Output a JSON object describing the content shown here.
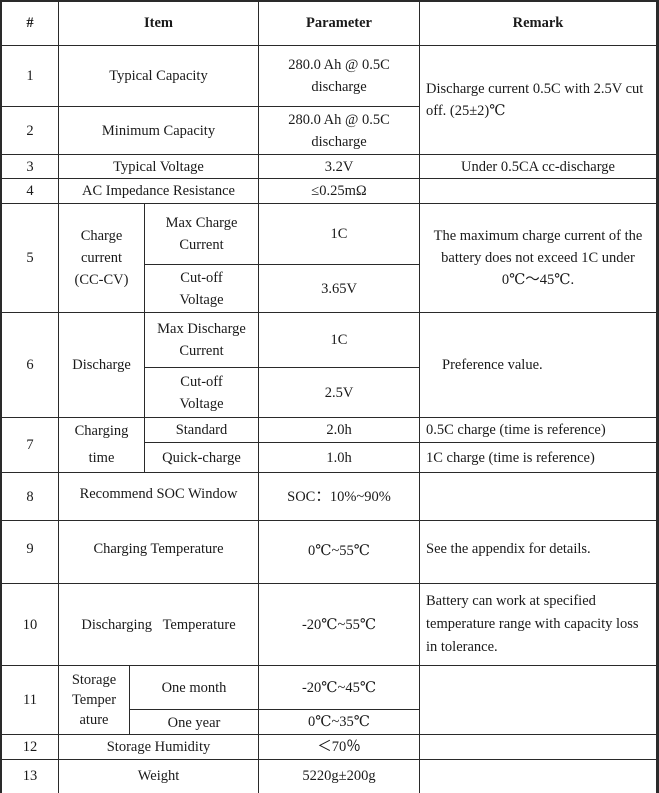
{
  "header": {
    "num": "#",
    "item": "Item",
    "parameter": "Parameter",
    "remark": "Remark"
  },
  "rows": [
    {
      "num": "1",
      "item": "Typical Capacity",
      "parameter": "280.0 Ah @ 0.5C discharge",
      "remark": "Discharge  current 0.5C with 2.5V cut off. (25±2)℃"
    },
    {
      "num": "2",
      "item": "Minimum Capacity",
      "parameter": "280.0 Ah @ 0.5C discharge"
    },
    {
      "num": "3",
      "item": "Typical Voltage",
      "parameter": "3.2V",
      "remark": "Under 0.5CA cc-discharge"
    },
    {
      "num": "4",
      "item": "AC Impedance Resistance",
      "parameter": "≤0.25mΩ",
      "remark": ""
    },
    {
      "num": "5",
      "item": "Charge current (CC-CV)",
      "sub": [
        {
          "item": "Max Charge Current",
          "parameter": "1C"
        },
        {
          "item": "Cut-off Voltage",
          "parameter": "3.65V"
        }
      ],
      "remark": "The maximum  charge current of the battery does not exceed 1C under 0℃～45℃."
    },
    {
      "num": "6",
      "item": "Discharge",
      "sub": [
        {
          "item": "Max Discharge Current",
          "parameter": "1C"
        },
        {
          "item": "Cut-off Voltage",
          "parameter": "2.5V"
        }
      ],
      "remark": "Preference value."
    },
    {
      "num": "7",
      "item": "Charging time",
      "sub": [
        {
          "item": "Standard",
          "parameter": "2.0h",
          "remark": "0.5C charge (time  is reference)"
        },
        {
          "item": "Quick-charge",
          "parameter": "1.0h",
          "remark": "1C charge (time is reference)"
        }
      ]
    },
    {
      "num": "8",
      "item": "Recommend  SOC Window",
      "parameter": "SOC：10%~90%",
      "remark": ""
    },
    {
      "num": "9",
      "item": "Charging Temperature",
      "parameter": "0℃~55℃",
      "remark": "See the appendix for details."
    },
    {
      "num": "10",
      "item": "Discharging   Temperature",
      "parameter": "-20℃~55℃",
      "remark": "Battery can work at specified temperature range with capacity loss in tolerance."
    },
    {
      "num": "11",
      "item": "Storage Temper ature",
      "sub": [
        {
          "item": "One month",
          "parameter": "-20℃~45℃"
        },
        {
          "item": "One year",
          "parameter": "0℃~35℃"
        }
      ],
      "remark": ""
    },
    {
      "num": "12",
      "item": "Storage Humidity",
      "parameter": "＜70％",
      "remark": ""
    },
    {
      "num": "13",
      "item": "Weight",
      "parameter": "5220g±200g",
      "remark": ""
    }
  ]
}
